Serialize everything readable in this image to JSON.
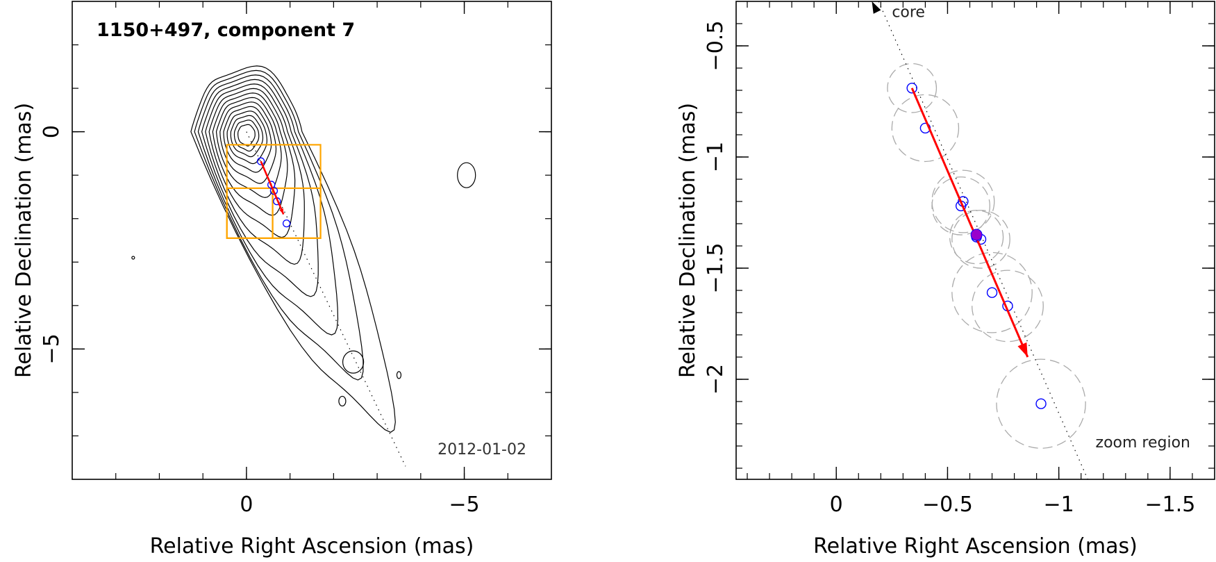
{
  "chart_data": [
    {
      "type": "scatter",
      "title": "1150+497, component 7",
      "annotation": "2012-01-02",
      "xlabel": "Relative Right Ascension (mas)",
      "ylabel": "Relative Declination (mas)",
      "xlim": [
        4.0,
        -7.0
      ],
      "ylim": [
        -8.0,
        3.0
      ],
      "xticks": [
        {
          "v": 0,
          "label": "0"
        },
        {
          "v": -5,
          "label": "−5"
        }
      ],
      "yticks": [
        {
          "v": 0,
          "label": "0"
        },
        {
          "v": -5,
          "label": "−5"
        }
      ],
      "xminor": [
        3,
        2,
        1,
        0,
        -1,
        -2,
        -3,
        -4,
        -5,
        -6
      ],
      "yminor": [
        2,
        1,
        0,
        -1,
        -2,
        -3,
        -4,
        -5,
        -6,
        -7
      ],
      "contour_levels": 14,
      "contour_center": {
        "x": 0.0,
        "y": 0.0
      },
      "components": [
        {
          "x": -0.33,
          "y": -0.68
        },
        {
          "x": -0.57,
          "y": -1.22
        },
        {
          "x": -0.63,
          "y": -1.36
        },
        {
          "x": -0.7,
          "y": -1.6
        },
        {
          "x": -0.92,
          "y": -2.11
        }
      ],
      "motion_vector": {
        "from": {
          "x": -0.33,
          "y": -0.68
        },
        "to": {
          "x": -0.85,
          "y": -1.9
        }
      },
      "jet_axis": {
        "from": {
          "x": 0.0,
          "y": 0.0
        },
        "to": {
          "x": -3.65,
          "y": -7.7
        }
      },
      "zoom_boxes": [
        {
          "x0": 0.45,
          "x1": -1.7,
          "y0": -0.3,
          "y1": -2.45
        },
        {
          "x0": 0.45,
          "x1": -0.6,
          "y0": -1.3,
          "y1": -2.45
        },
        {
          "x0": -0.6,
          "x1": -1.7,
          "y0": -1.3,
          "y1": -2.45
        }
      ],
      "colors": {
        "vector": "#ff0000",
        "component": "#0000ff",
        "box": "#ffa500",
        "contour": "#000000"
      }
    },
    {
      "type": "scatter",
      "title": "",
      "xlabel": "Relative Right Ascension (mas)",
      "ylabel": "Relative Declination (mas)",
      "xlim": [
        0.45,
        -1.7
      ],
      "ylim": [
        -2.45,
        -0.3
      ],
      "xticks": [
        {
          "v": 0,
          "label": "0"
        },
        {
          "v": -0.5,
          "label": "−0.5"
        },
        {
          "v": -1,
          "label": "−1"
        },
        {
          "v": -1.5,
          "label": "−1.5"
        }
      ],
      "yticks": [
        {
          "v": -0.5,
          "label": "−0.5"
        },
        {
          "v": -1,
          "label": "−1"
        },
        {
          "v": -1.5,
          "label": "−1.5"
        },
        {
          "v": -2,
          "label": "−2"
        }
      ],
      "xminor": [
        0.4,
        0.3,
        0.2,
        0.1,
        0,
        -0.1,
        -0.2,
        -0.3,
        -0.4,
        -0.5,
        -0.6,
        -0.7,
        -0.8,
        -0.9,
        -1.0,
        -1.1,
        -1.2,
        -1.3,
        -1.4,
        -1.5,
        -1.6
      ],
      "yminor": [
        -0.4,
        -0.5,
        -0.6,
        -0.7,
        -0.8,
        -0.9,
        -1.0,
        -1.1,
        -1.2,
        -1.3,
        -1.4,
        -1.5,
        -1.6,
        -1.7,
        -1.8,
        -1.9,
        -2.0,
        -2.1,
        -2.2,
        -2.3,
        -2.4
      ],
      "components": [
        {
          "x": -0.34,
          "y": -0.69,
          "size": 0.11
        },
        {
          "x": -0.4,
          "y": -0.87,
          "size": 0.15
        },
        {
          "x": -0.57,
          "y": -1.2,
          "size": 0.14
        },
        {
          "x": -0.56,
          "y": -1.22,
          "size": 0.13
        },
        {
          "x": -0.63,
          "y": -1.36,
          "size": 0.12
        },
        {
          "x": -0.65,
          "y": -1.37,
          "size": 0.13
        },
        {
          "x": -0.7,
          "y": -1.61,
          "size": 0.18
        },
        {
          "x": -0.77,
          "y": -1.67,
          "size": 0.16
        },
        {
          "x": -0.92,
          "y": -2.11,
          "size": 0.2
        }
      ],
      "current_component": {
        "x": -0.63,
        "y": -1.35
      },
      "motion_vector": {
        "from": {
          "x": -0.34,
          "y": -0.69
        },
        "to": {
          "x": -0.86,
          "y": -1.9
        }
      },
      "jet_axis": {
        "from": {
          "x": -0.19,
          "y": -0.3
        },
        "to": {
          "x": -1.13,
          "y": -2.45
        }
      },
      "core_arrow": {
        "from": {
          "x": -0.19,
          "y": -0.36
        },
        "to": {
          "x": -0.16,
          "y": -0.3
        }
      },
      "labels": {
        "core": "core",
        "zoom": "zoom region"
      },
      "colors": {
        "vector": "#ff0000",
        "component": "#0000ff",
        "current": "#9900cc",
        "ellipse": "#aaaaaa"
      }
    }
  ]
}
